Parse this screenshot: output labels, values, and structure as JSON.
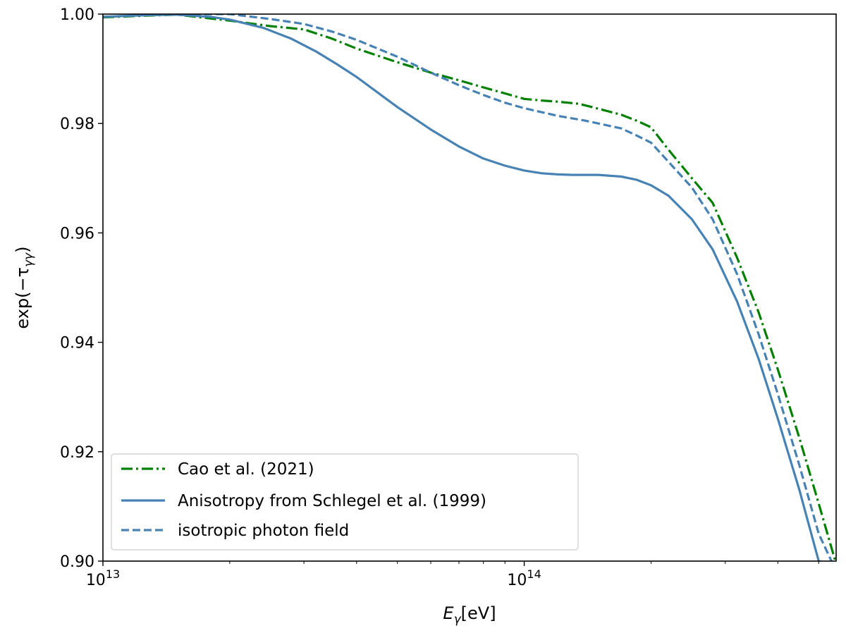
{
  "chart_data": {
    "type": "line",
    "title": "",
    "xlabel": {
      "base": "E",
      "sub": "γ",
      "unit": "[eV]"
    },
    "ylabel": {
      "prefix": "exp(−τ",
      "sub": "γγ",
      "suffix": ")"
    },
    "xscale": "log",
    "xlim": [
      10000000000000.0,
      550000000000000.0
    ],
    "ylim": [
      0.9,
      1.0
    ],
    "x_major_ticks": [
      {
        "value": 10000000000000.0,
        "base": "10",
        "exp": "13"
      },
      {
        "value": 100000000000000.0,
        "base": "10",
        "exp": "14"
      }
    ],
    "y_ticks": [
      {
        "value": 0.9,
        "label": "0.90"
      },
      {
        "value": 0.92,
        "label": "0.92"
      },
      {
        "value": 0.94,
        "label": "0.94"
      },
      {
        "value": 0.96,
        "label": "0.96"
      },
      {
        "value": 0.98,
        "label": "0.98"
      },
      {
        "value": 1.0,
        "label": "1.00"
      }
    ],
    "grid": false,
    "legend_position": "lower-left",
    "series": [
      {
        "name": "Cao et al. (2021)",
        "color": "#008000",
        "style": "dashdot",
        "x": [
          10000000000000.0,
          12500000000000.0,
          15000000000000.0,
          20000000000000.0,
          25000000000000.0,
          30000000000000.0,
          35000000000000.0,
          40000000000000.0,
          50000000000000.0,
          60000000000000.0,
          70000000000000.0,
          80000000000000.0,
          90000000000000.0,
          100000000000000.0,
          110000000000000.0,
          120000000000000.0,
          135000000000000.0,
          150000000000000.0,
          170000000000000.0,
          185000000000000.0,
          200000000000000.0,
          220000000000000.0,
          250000000000000.0,
          280000000000000.0,
          320000000000000.0,
          360000000000000.0,
          400000000000000.0,
          450000000000000.0,
          500000000000000.0,
          550000000000000.0
        ],
        "values": [
          0.9994,
          0.9997,
          0.9999,
          0.9988,
          0.9978,
          0.9972,
          0.9955,
          0.9937,
          0.9912,
          0.9893,
          0.9879,
          0.9866,
          0.9855,
          0.9845,
          0.9842,
          0.984,
          0.9836,
          0.9827,
          0.9816,
          0.9805,
          0.9793,
          0.9752,
          0.97,
          0.9655,
          0.9555,
          0.9455,
          0.935,
          0.9225,
          0.9105,
          0.8995
        ]
      },
      {
        "name": "Anisotropy from Schlegel et al. (1999)",
        "color": "#4682b4",
        "style": "solid",
        "x": [
          10000000000000.0,
          12500000000000.0,
          15000000000000.0,
          18000000000000.0,
          20000000000000.0,
          24000000000000.0,
          28000000000000.0,
          32000000000000.0,
          36000000000000.0,
          40000000000000.0,
          50000000000000.0,
          60000000000000.0,
          70000000000000.0,
          80000000000000.0,
          90000000000000.0,
          100000000000000.0,
          110000000000000.0,
          120000000000000.0,
          130000000000000.0,
          150000000000000.0,
          170000000000000.0,
          185000000000000.0,
          200000000000000.0,
          220000000000000.0,
          250000000000000.0,
          280000000000000.0,
          320000000000000.0,
          360000000000000.0,
          400000000000000.0,
          450000000000000.0,
          500000000000000.0,
          530000000000000.0
        ],
        "values": [
          0.9995,
          0.9998,
          0.9999,
          0.9995,
          0.999,
          0.9975,
          0.9955,
          0.9932,
          0.9908,
          0.9885,
          0.983,
          0.9789,
          0.9758,
          0.9736,
          0.9723,
          0.9714,
          0.9709,
          0.9707,
          0.9706,
          0.9706,
          0.9703,
          0.9697,
          0.9687,
          0.9668,
          0.9625,
          0.957,
          0.9475,
          0.937,
          0.926,
          0.913,
          0.9,
          0.8995
        ]
      },
      {
        "name": "isotropic photon field",
        "color": "#4682b4",
        "style": "dashed",
        "x": [
          10000000000000.0,
          12500000000000.0,
          15000000000000.0,
          20000000000000.0,
          25000000000000.0,
          30000000000000.0,
          35000000000000.0,
          40000000000000.0,
          50000000000000.0,
          60000000000000.0,
          70000000000000.0,
          80000000000000.0,
          90000000000000.0,
          100000000000000.0,
          120000000000000.0,
          140000000000000.0,
          170000000000000.0,
          185000000000000.0,
          200000000000000.0,
          220000000000000.0,
          250000000000000.0,
          280000000000000.0,
          320000000000000.0,
          360000000000000.0,
          400000000000000.0,
          450000000000000.0,
          500000000000000.0,
          540000000000000.0
        ],
        "values": [
          0.9995,
          0.9998,
          1.0,
          1.0,
          0.9991,
          0.9982,
          0.9968,
          0.9953,
          0.9922,
          0.9893,
          0.987,
          0.9852,
          0.9838,
          0.9828,
          0.9814,
          0.9805,
          0.9791,
          0.9778,
          0.9765,
          0.973,
          0.9683,
          0.9625,
          0.9525,
          0.9415,
          0.9305,
          0.9175,
          0.905,
          0.8995
        ]
      }
    ]
  }
}
